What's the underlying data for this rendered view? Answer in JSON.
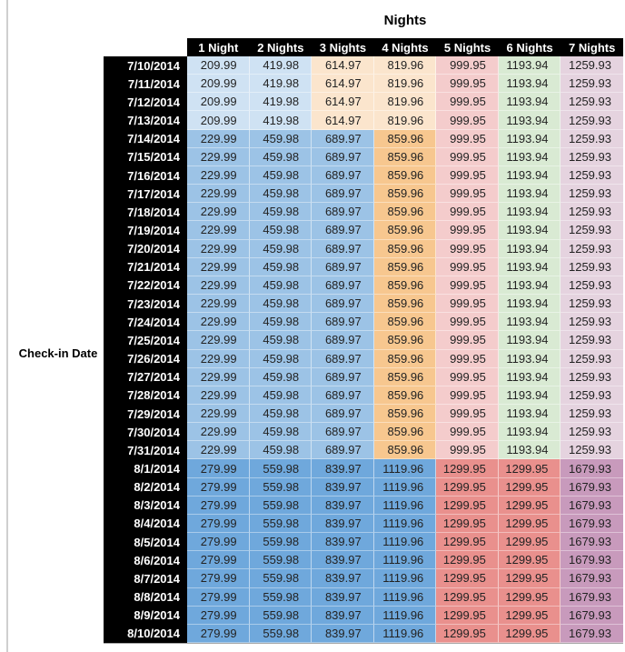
{
  "chart_data": {
    "type": "table",
    "title": "Nights",
    "row_axis_label": "Check-in Date",
    "columns": [
      "1 Night",
      "2 Nights",
      "3 Nights",
      "4 Nights",
      "5 Nights",
      "6 Nights",
      "7 Nights"
    ],
    "tier_fills": {
      "A": [
        "#CFE2F3",
        "#CFE2F3",
        "#FBE5CD",
        "#FBE5CD",
        "#F4CCCC",
        "#D9EAD3",
        "#E5D3DF"
      ],
      "B": [
        "#9CC3E6",
        "#9CC3E6",
        "#9CC3E6",
        "#F7C78F",
        "#F4CCCC",
        "#D9EAD3",
        "#E5D3DF"
      ],
      "C": [
        "#6FA8DC",
        "#6FA8DC",
        "#6FA8DC",
        "#6FA8DC",
        "#E9908D",
        "#E9908D",
        "#C89ABC"
      ]
    },
    "header_colors": {
      "background": "#000000",
      "text": "#FFFFFF"
    },
    "date_column_colors": {
      "background": "#000000",
      "text": "#FFFFFF"
    },
    "rows": [
      {
        "date": "7/10/2014",
        "tier": "A",
        "values": [
          209.99,
          419.98,
          614.97,
          819.96,
          999.95,
          1193.94,
          1259.93
        ]
      },
      {
        "date": "7/11/2014",
        "tier": "A",
        "values": [
          209.99,
          419.98,
          614.97,
          819.96,
          999.95,
          1193.94,
          1259.93
        ]
      },
      {
        "date": "7/12/2014",
        "tier": "A",
        "values": [
          209.99,
          419.98,
          614.97,
          819.96,
          999.95,
          1193.94,
          1259.93
        ]
      },
      {
        "date": "7/13/2014",
        "tier": "A",
        "values": [
          209.99,
          419.98,
          614.97,
          819.96,
          999.95,
          1193.94,
          1259.93
        ]
      },
      {
        "date": "7/14/2014",
        "tier": "B",
        "values": [
          229.99,
          459.98,
          689.97,
          859.96,
          999.95,
          1193.94,
          1259.93
        ]
      },
      {
        "date": "7/15/2014",
        "tier": "B",
        "values": [
          229.99,
          459.98,
          689.97,
          859.96,
          999.95,
          1193.94,
          1259.93
        ]
      },
      {
        "date": "7/16/2014",
        "tier": "B",
        "values": [
          229.99,
          459.98,
          689.97,
          859.96,
          999.95,
          1193.94,
          1259.93
        ]
      },
      {
        "date": "7/17/2014",
        "tier": "B",
        "values": [
          229.99,
          459.98,
          689.97,
          859.96,
          999.95,
          1193.94,
          1259.93
        ]
      },
      {
        "date": "7/18/2014",
        "tier": "B",
        "values": [
          229.99,
          459.98,
          689.97,
          859.96,
          999.95,
          1193.94,
          1259.93
        ]
      },
      {
        "date": "7/19/2014",
        "tier": "B",
        "values": [
          229.99,
          459.98,
          689.97,
          859.96,
          999.95,
          1193.94,
          1259.93
        ]
      },
      {
        "date": "7/20/2014",
        "tier": "B",
        "values": [
          229.99,
          459.98,
          689.97,
          859.96,
          999.95,
          1193.94,
          1259.93
        ]
      },
      {
        "date": "7/21/2014",
        "tier": "B",
        "values": [
          229.99,
          459.98,
          689.97,
          859.96,
          999.95,
          1193.94,
          1259.93
        ]
      },
      {
        "date": "7/22/2014",
        "tier": "B",
        "values": [
          229.99,
          459.98,
          689.97,
          859.96,
          999.95,
          1193.94,
          1259.93
        ]
      },
      {
        "date": "7/23/2014",
        "tier": "B",
        "values": [
          229.99,
          459.98,
          689.97,
          859.96,
          999.95,
          1193.94,
          1259.93
        ]
      },
      {
        "date": "7/24/2014",
        "tier": "B",
        "values": [
          229.99,
          459.98,
          689.97,
          859.96,
          999.95,
          1193.94,
          1259.93
        ]
      },
      {
        "date": "7/25/2014",
        "tier": "B",
        "values": [
          229.99,
          459.98,
          689.97,
          859.96,
          999.95,
          1193.94,
          1259.93
        ]
      },
      {
        "date": "7/26/2014",
        "tier": "B",
        "values": [
          229.99,
          459.98,
          689.97,
          859.96,
          999.95,
          1193.94,
          1259.93
        ]
      },
      {
        "date": "7/27/2014",
        "tier": "B",
        "values": [
          229.99,
          459.98,
          689.97,
          859.96,
          999.95,
          1193.94,
          1259.93
        ]
      },
      {
        "date": "7/28/2014",
        "tier": "B",
        "values": [
          229.99,
          459.98,
          689.97,
          859.96,
          999.95,
          1193.94,
          1259.93
        ]
      },
      {
        "date": "7/29/2014",
        "tier": "B",
        "values": [
          229.99,
          459.98,
          689.97,
          859.96,
          999.95,
          1193.94,
          1259.93
        ]
      },
      {
        "date": "7/30/2014",
        "tier": "B",
        "values": [
          229.99,
          459.98,
          689.97,
          859.96,
          999.95,
          1193.94,
          1259.93
        ]
      },
      {
        "date": "7/31/2014",
        "tier": "B",
        "values": [
          229.99,
          459.98,
          689.97,
          859.96,
          999.95,
          1193.94,
          1259.93
        ]
      },
      {
        "date": "8/1/2014",
        "tier": "C",
        "values": [
          279.99,
          559.98,
          839.97,
          1119.96,
          1299.95,
          1299.95,
          1679.93
        ]
      },
      {
        "date": "8/2/2014",
        "tier": "C",
        "values": [
          279.99,
          559.98,
          839.97,
          1119.96,
          1299.95,
          1299.95,
          1679.93
        ]
      },
      {
        "date": "8/3/2014",
        "tier": "C",
        "values": [
          279.99,
          559.98,
          839.97,
          1119.96,
          1299.95,
          1299.95,
          1679.93
        ]
      },
      {
        "date": "8/4/2014",
        "tier": "C",
        "values": [
          279.99,
          559.98,
          839.97,
          1119.96,
          1299.95,
          1299.95,
          1679.93
        ]
      },
      {
        "date": "8/5/2014",
        "tier": "C",
        "values": [
          279.99,
          559.98,
          839.97,
          1119.96,
          1299.95,
          1299.95,
          1679.93
        ]
      },
      {
        "date": "8/6/2014",
        "tier": "C",
        "values": [
          279.99,
          559.98,
          839.97,
          1119.96,
          1299.95,
          1299.95,
          1679.93
        ]
      },
      {
        "date": "8/7/2014",
        "tier": "C",
        "values": [
          279.99,
          559.98,
          839.97,
          1119.96,
          1299.95,
          1299.95,
          1679.93
        ]
      },
      {
        "date": "8/8/2014",
        "tier": "C",
        "values": [
          279.99,
          559.98,
          839.97,
          1119.96,
          1299.95,
          1299.95,
          1679.93
        ]
      },
      {
        "date": "8/9/2014",
        "tier": "C",
        "values": [
          279.99,
          559.98,
          839.97,
          1119.96,
          1299.95,
          1299.95,
          1679.93
        ]
      },
      {
        "date": "8/10/2014",
        "tier": "C",
        "values": [
          279.99,
          559.98,
          839.97,
          1119.96,
          1299.95,
          1299.95,
          1679.93
        ]
      }
    ]
  }
}
